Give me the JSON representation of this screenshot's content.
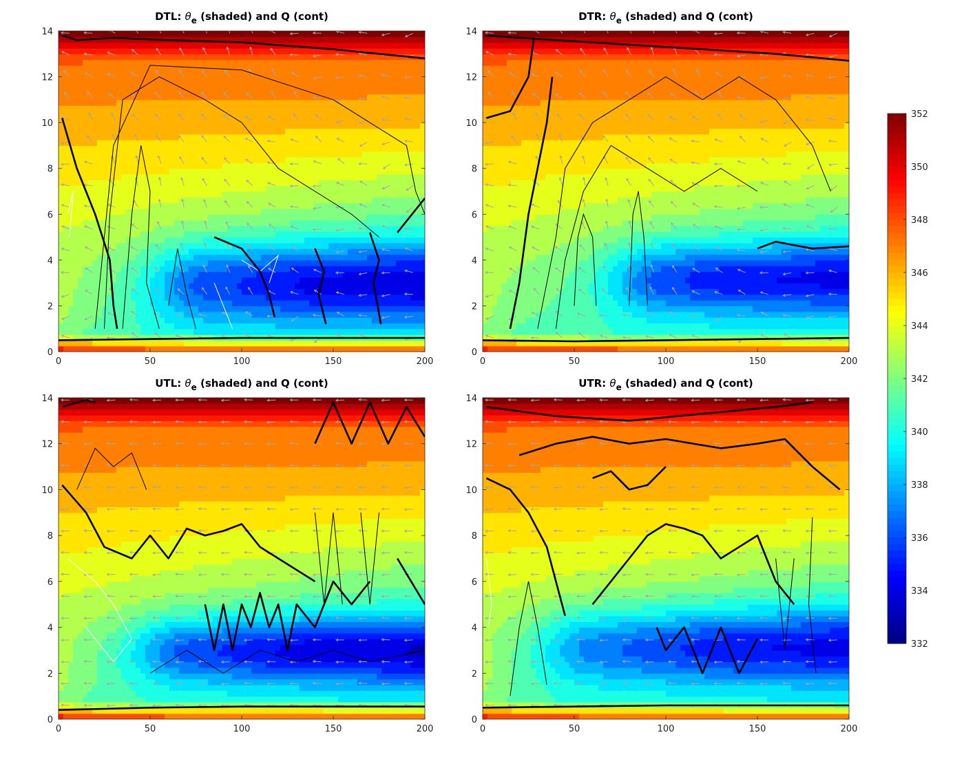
{
  "chart_data": [
    {
      "type": "heatmap",
      "panel_id": "DTL",
      "title_prefix": "DTL: ",
      "title_symbol": "θ",
      "title_subscript": "e",
      "title_suffix": " (shaded) and Q (cont)",
      "xlim": [
        0,
        200
      ],
      "ylim": [
        0,
        14
      ],
      "x_ticks": [
        "0",
        "50",
        "100",
        "150",
        "200"
      ],
      "y_ticks": [
        "0",
        "2",
        "4",
        "6",
        "8",
        "10",
        "12",
        "14"
      ],
      "cold_core": {
        "x": [
          80,
          200
        ],
        "y": [
          1.2,
          4.8
        ],
        "intensity": 0.9
      },
      "vectors": "mixed-updraft",
      "contours_thick": [
        [
          [
            2,
            13.8
          ],
          [
            10,
            13.6
          ],
          [
            30,
            13.7
          ],
          [
            60,
            13.6
          ],
          [
            100,
            13.5
          ],
          [
            150,
            13.2
          ],
          [
            200,
            12.8
          ]
        ],
        [
          [
            2,
            10.2
          ],
          [
            10,
            8
          ],
          [
            20,
            6
          ],
          [
            28,
            4
          ],
          [
            30,
            2
          ],
          [
            32,
            1
          ]
        ],
        [
          [
            85,
            5
          ],
          [
            100,
            4.5
          ],
          [
            110,
            3.5
          ],
          [
            115,
            2.5
          ],
          [
            118,
            1.5
          ]
        ],
        [
          [
            140,
            4.5
          ],
          [
            145,
            3.5
          ],
          [
            142,
            2.5
          ],
          [
            146,
            1.2
          ]
        ],
        [
          [
            170,
            5.2
          ],
          [
            175,
            4
          ],
          [
            172,
            3
          ],
          [
            176,
            1.2
          ]
        ],
        [
          [
            185,
            5.2
          ],
          [
            200,
            6.7
          ]
        ],
        [
          [
            0,
            0.5
          ],
          [
            50,
            0.55
          ],
          [
            100,
            0.6
          ],
          [
            150,
            0.6
          ],
          [
            200,
            0.6
          ]
        ]
      ],
      "contours_thin": [
        [
          [
            35,
            1
          ],
          [
            40,
            6
          ],
          [
            45,
            9
          ],
          [
            50,
            7
          ],
          [
            48,
            3
          ],
          [
            55,
            1
          ]
        ],
        [
          [
            25,
            1
          ],
          [
            28,
            6
          ],
          [
            35,
            11
          ],
          [
            55,
            12
          ],
          [
            80,
            11
          ],
          [
            100,
            10
          ],
          [
            120,
            8
          ],
          [
            140,
            7
          ],
          [
            160,
            6
          ],
          [
            175,
            5
          ]
        ],
        [
          [
            20,
            1
          ],
          [
            30,
            9
          ],
          [
            50,
            12.5
          ],
          [
            100,
            12.3
          ],
          [
            150,
            11
          ],
          [
            190,
            9
          ],
          [
            195,
            7
          ],
          [
            200,
            6
          ]
        ],
        [
          [
            60,
            2
          ],
          [
            65,
            4.5
          ],
          [
            70,
            2.5
          ],
          [
            75,
            1
          ]
        ]
      ],
      "contours_white": [
        [
          [
            5,
            6
          ],
          [
            8,
            7
          ],
          [
            6,
            5
          ]
        ],
        [
          [
            85,
            3
          ],
          [
            90,
            2
          ],
          [
            95,
            1
          ]
        ],
        [
          [
            100,
            4
          ],
          [
            110,
            3.5
          ],
          [
            120,
            4.2
          ],
          [
            115,
            3
          ]
        ]
      ]
    },
    {
      "type": "heatmap",
      "panel_id": "DTR",
      "title_prefix": "DTR: ",
      "title_symbol": "θ",
      "title_subscript": "e",
      "title_suffix": " (shaded) and Q (cont)",
      "xlim": [
        0,
        200
      ],
      "ylim": [
        0,
        14
      ],
      "x_ticks": [
        "0",
        "50",
        "100",
        "150",
        "200"
      ],
      "y_ticks": [
        "0",
        "2",
        "4",
        "6",
        "8",
        "10",
        "12",
        "14"
      ],
      "cold_core": {
        "x": [
          100,
          200
        ],
        "y": [
          1.6,
          4.8
        ],
        "intensity": 0.85
      },
      "vectors": "mixed-updraft",
      "contours_thick": [
        [
          [
            2,
            13.8
          ],
          [
            40,
            13.6
          ],
          [
            80,
            13.4
          ],
          [
            120,
            13.2
          ],
          [
            160,
            13
          ],
          [
            200,
            12.7
          ]
        ],
        [
          [
            2,
            10.2
          ],
          [
            15,
            10.5
          ],
          [
            25,
            12
          ],
          [
            28,
            13.7
          ]
        ],
        [
          [
            15,
            1
          ],
          [
            20,
            3
          ],
          [
            25,
            6
          ],
          [
            30,
            8
          ],
          [
            35,
            10
          ],
          [
            38,
            12
          ]
        ],
        [
          [
            150,
            4.5
          ],
          [
            160,
            4.8
          ],
          [
            180,
            4.5
          ],
          [
            200,
            4.6
          ]
        ],
        [
          [
            0,
            0.5
          ],
          [
            50,
            0.45
          ],
          [
            100,
            0.5
          ],
          [
            150,
            0.55
          ],
          [
            200,
            0.6
          ]
        ]
      ],
      "contours_thin": [
        [
          [
            30,
            1
          ],
          [
            40,
            5
          ],
          [
            45,
            8
          ],
          [
            60,
            10
          ],
          [
            80,
            11
          ],
          [
            100,
            12
          ],
          [
            120,
            11
          ],
          [
            140,
            12
          ],
          [
            160,
            11
          ],
          [
            180,
            9
          ],
          [
            190,
            7
          ]
        ],
        [
          [
            40,
            1
          ],
          [
            45,
            4
          ],
          [
            55,
            7
          ],
          [
            70,
            9
          ],
          [
            90,
            8
          ],
          [
            110,
            7
          ],
          [
            130,
            8
          ],
          [
            150,
            7
          ]
        ],
        [
          [
            50,
            2
          ],
          [
            52,
            5
          ],
          [
            55,
            6
          ],
          [
            60,
            5
          ],
          [
            62,
            2
          ]
        ],
        [
          [
            80,
            2
          ],
          [
            82,
            6
          ],
          [
            85,
            7
          ],
          [
            88,
            5
          ],
          [
            90,
            2
          ]
        ]
      ],
      "contours_white": []
    },
    {
      "type": "heatmap",
      "panel_id": "UTL",
      "title_prefix": "UTL: ",
      "title_symbol": "θ",
      "title_subscript": "e",
      "title_suffix": " (shaded) and Q (cont)",
      "xlim": [
        0,
        200
      ],
      "ylim": [
        0,
        14
      ],
      "x_ticks": [
        "0",
        "50",
        "100",
        "150",
        "200"
      ],
      "y_ticks": [
        "0",
        "2",
        "4",
        "6",
        "8",
        "10",
        "12",
        "14"
      ],
      "cold_core": {
        "x": [
          70,
          200
        ],
        "y": [
          1.5,
          4.5
        ],
        "intensity": 0.95
      },
      "vectors": "westward",
      "contours_thick": [
        [
          [
            2,
            13.6
          ],
          [
            15,
            13.9
          ],
          [
            20,
            13.8
          ]
        ],
        [
          [
            140,
            12
          ],
          [
            150,
            13.8
          ],
          [
            160,
            12
          ],
          [
            170,
            13.8
          ],
          [
            180,
            12
          ],
          [
            190,
            13.6
          ],
          [
            200,
            12.3
          ]
        ],
        [
          [
            2,
            10.2
          ],
          [
            15,
            9
          ],
          [
            25,
            7.5
          ],
          [
            40,
            7
          ],
          [
            50,
            8
          ],
          [
            60,
            7
          ],
          [
            70,
            8.3
          ],
          [
            80,
            8
          ],
          [
            90,
            8.2
          ],
          [
            100,
            8.5
          ],
          [
            110,
            7.5
          ],
          [
            120,
            7
          ],
          [
            130,
            6.5
          ],
          [
            140,
            6
          ]
        ],
        [
          [
            80,
            5
          ],
          [
            85,
            3
          ],
          [
            90,
            5
          ],
          [
            95,
            3
          ],
          [
            100,
            5
          ],
          [
            105,
            4
          ],
          [
            110,
            5.5
          ],
          [
            115,
            4
          ],
          [
            120,
            5
          ],
          [
            125,
            3
          ],
          [
            130,
            5
          ],
          [
            140,
            4
          ],
          [
            150,
            6
          ],
          [
            160,
            5
          ],
          [
            170,
            6
          ]
        ],
        [
          [
            185,
            7
          ],
          [
            200,
            5
          ]
        ],
        [
          [
            0,
            0.4
          ],
          [
            50,
            0.5
          ],
          [
            100,
            0.55
          ],
          [
            150,
            0.55
          ],
          [
            200,
            0.55
          ]
        ]
      ],
      "contours_thin": [
        [
          [
            10,
            10
          ],
          [
            20,
            11.8
          ],
          [
            30,
            11
          ],
          [
            40,
            11.6
          ],
          [
            48,
            10
          ]
        ],
        [
          [
            50,
            2
          ],
          [
            70,
            3
          ],
          [
            90,
            2
          ],
          [
            110,
            3
          ],
          [
            130,
            2.5
          ],
          [
            150,
            3
          ],
          [
            170,
            2.5
          ],
          [
            200,
            3
          ]
        ],
        [
          [
            140,
            9
          ],
          [
            145,
            5
          ],
          [
            150,
            9
          ],
          [
            155,
            5
          ]
        ],
        [
          [
            165,
            9
          ],
          [
            170,
            5
          ],
          [
            175,
            9
          ]
        ]
      ],
      "contours_white": [
        [
          [
            5,
            7
          ],
          [
            20,
            6
          ],
          [
            30,
            5
          ],
          [
            40,
            3.5
          ],
          [
            30,
            2.5
          ],
          [
            15,
            4
          ]
        ]
      ]
    },
    {
      "type": "heatmap",
      "panel_id": "UTR",
      "title_prefix": "UTR: ",
      "title_symbol": "θ",
      "title_subscript": "e",
      "title_suffix": " (shaded) and Q (cont)",
      "xlim": [
        0,
        200
      ],
      "ylim": [
        0,
        14
      ],
      "x_ticks": [
        "0",
        "50",
        "100",
        "150",
        "200"
      ],
      "y_ticks": [
        "0",
        "2",
        "4",
        "6",
        "8",
        "10",
        "12",
        "14"
      ],
      "cold_core": {
        "x": [
          60,
          200
        ],
        "y": [
          1.5,
          4.8
        ],
        "intensity": 0.85
      },
      "vectors": "westward",
      "contours_thick": [
        [
          [
            2,
            13.6
          ],
          [
            40,
            13.2
          ],
          [
            80,
            13
          ],
          [
            120,
            13.3
          ],
          [
            160,
            13.6
          ],
          [
            180,
            13.8
          ]
        ],
        [
          [
            20,
            11.5
          ],
          [
            40,
            12
          ],
          [
            60,
            12.3
          ],
          [
            80,
            12
          ],
          [
            100,
            12.2
          ],
          [
            130,
            11.8
          ],
          [
            150,
            12
          ],
          [
            165,
            12.2
          ],
          [
            180,
            11
          ],
          [
            195,
            10
          ]
        ],
        [
          [
            60,
            10.5
          ],
          [
            70,
            10.8
          ],
          [
            80,
            10
          ],
          [
            90,
            10.2
          ],
          [
            100,
            11
          ]
        ],
        [
          [
            2,
            10.5
          ],
          [
            15,
            10
          ],
          [
            25,
            9
          ],
          [
            35,
            7.5
          ],
          [
            40,
            6
          ],
          [
            45,
            4.5
          ]
        ],
        [
          [
            60,
            5
          ],
          [
            70,
            6
          ],
          [
            80,
            7
          ],
          [
            90,
            8
          ],
          [
            100,
            8.5
          ],
          [
            110,
            8.3
          ],
          [
            120,
            8
          ],
          [
            130,
            7
          ],
          [
            140,
            7.5
          ],
          [
            150,
            8
          ],
          [
            160,
            6
          ],
          [
            170,
            5
          ]
        ],
        [
          [
            95,
            4
          ],
          [
            100,
            3
          ],
          [
            110,
            4
          ],
          [
            120,
            2
          ],
          [
            130,
            4
          ],
          [
            140,
            2
          ],
          [
            150,
            3.5
          ]
        ],
        [
          [
            0,
            0.5
          ],
          [
            50,
            0.55
          ],
          [
            100,
            0.6
          ],
          [
            150,
            0.6
          ],
          [
            200,
            0.6
          ]
        ]
      ],
      "contours_thin": [
        [
          [
            15,
            1
          ],
          [
            20,
            4
          ],
          [
            25,
            6
          ],
          [
            30,
            4
          ],
          [
            35,
            1.5
          ]
        ],
        [
          [
            160,
            7
          ],
          [
            165,
            3
          ],
          [
            170,
            7
          ]
        ],
        [
          [
            180,
            8.8
          ],
          [
            178,
            5
          ],
          [
            182,
            2
          ]
        ]
      ],
      "contours_white": [
        [
          [
            2,
            7
          ],
          [
            5,
            5
          ],
          [
            3,
            4
          ]
        ]
      ]
    }
  ],
  "colorbar": {
    "min": 332,
    "max": 352,
    "ticks": [
      "352",
      "350",
      "348",
      "346",
      "344",
      "342",
      "340",
      "338",
      "336",
      "334",
      "332"
    ],
    "colormap": "jet"
  },
  "colors": {
    "vector": "#a6a6a6",
    "contour": "#000000",
    "contour_white": "#ffffff",
    "axis": "#262626"
  }
}
